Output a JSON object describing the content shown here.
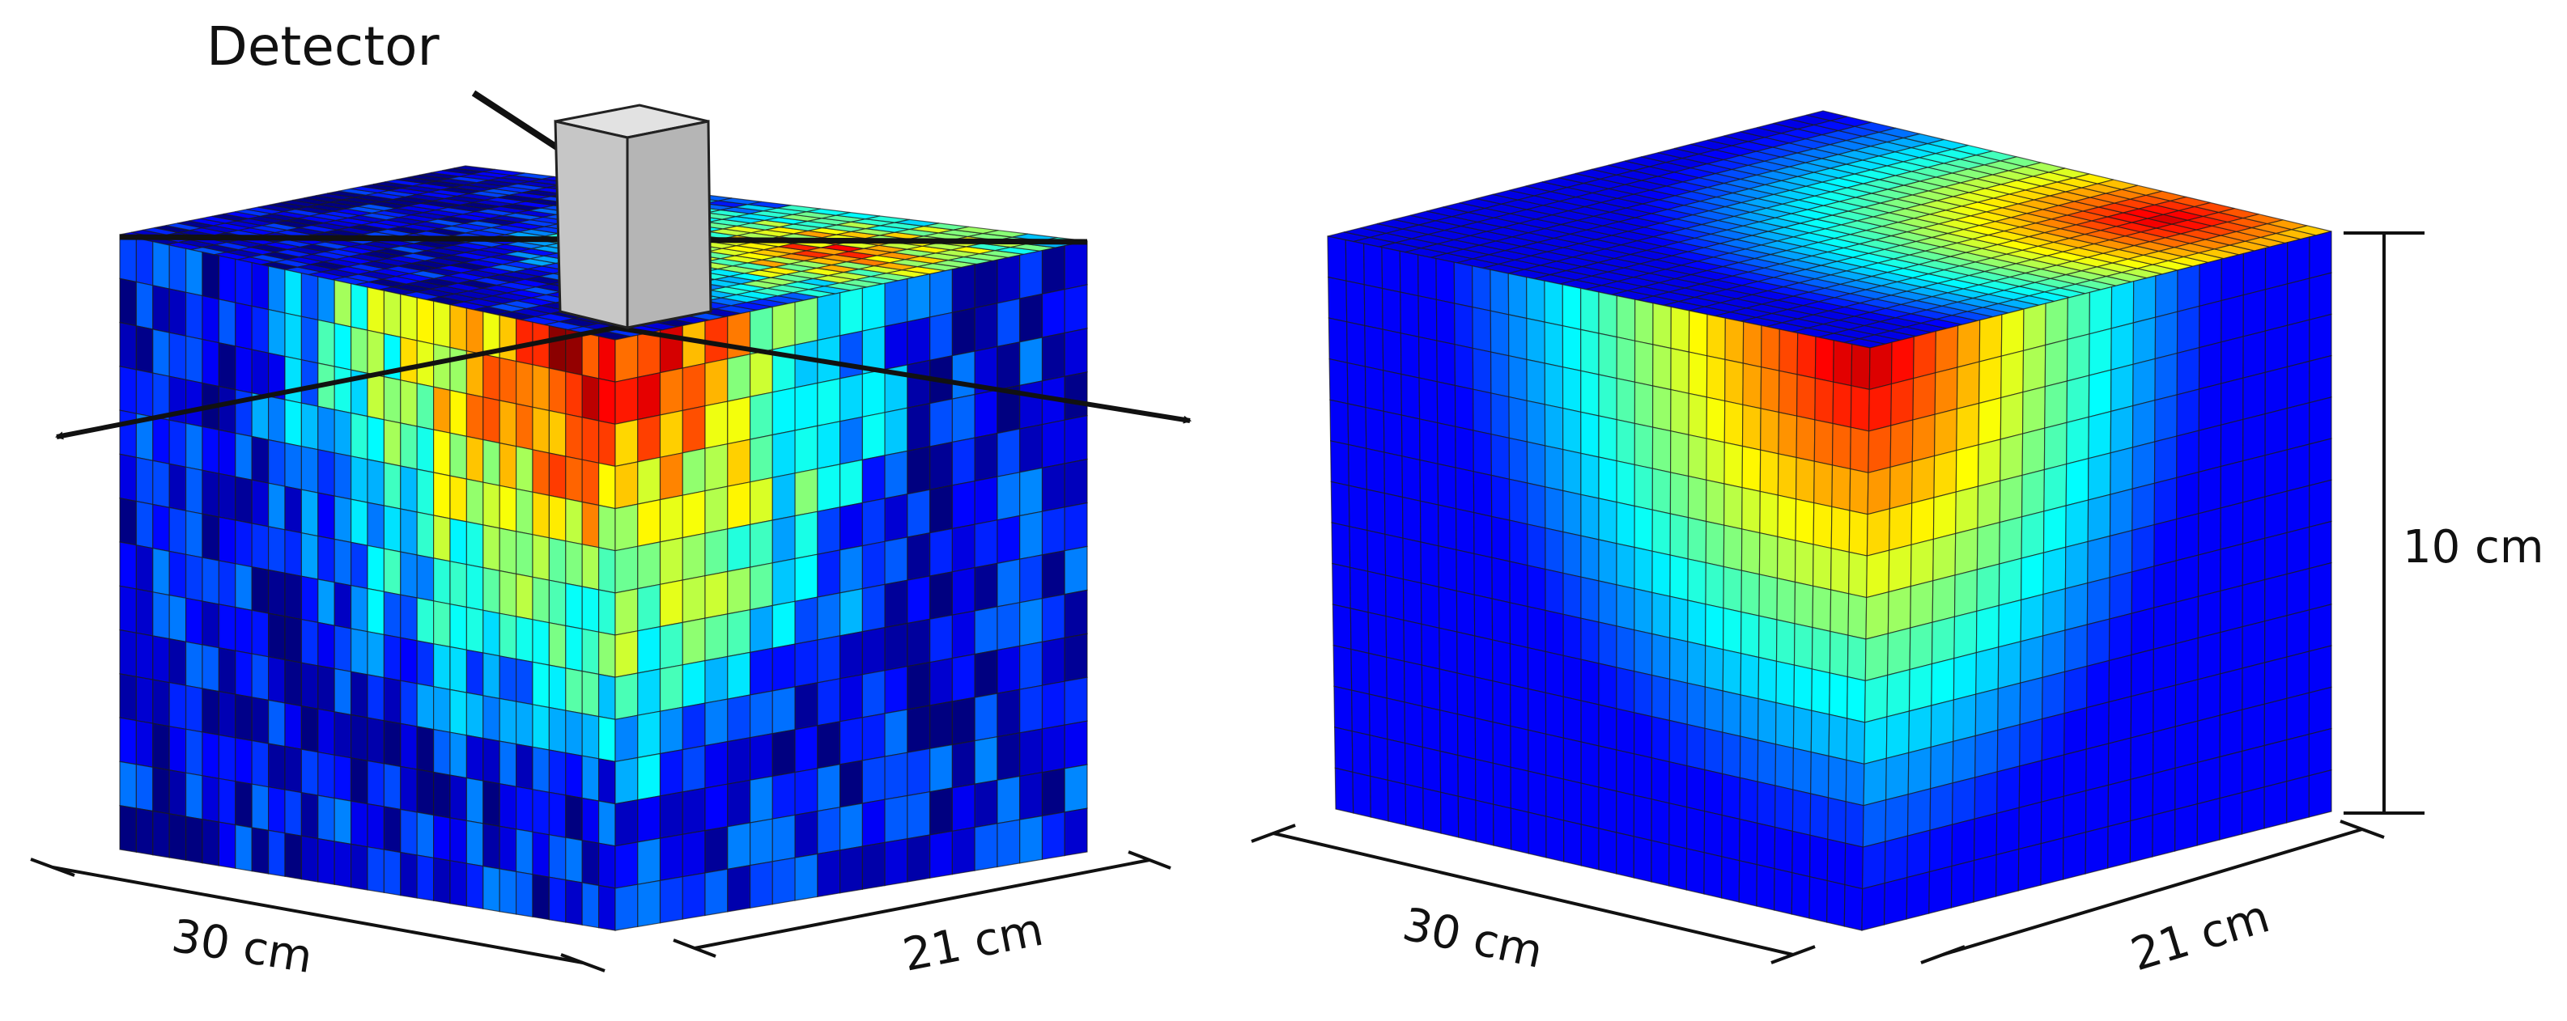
{
  "labels": {
    "detector": "Detector",
    "left_width": "30 cm",
    "left_depth": "21 cm",
    "right_width": "30 cm",
    "right_depth": "21 cm",
    "right_height": "10 cm"
  },
  "colormap": "jet",
  "colors": {
    "detector_body": "#c6c6c6",
    "detector_top": "#e2e2e2",
    "detector_side": "#a9a9a9",
    "grid_line": "#1a1a1a",
    "annotation": "#111111"
  }
}
